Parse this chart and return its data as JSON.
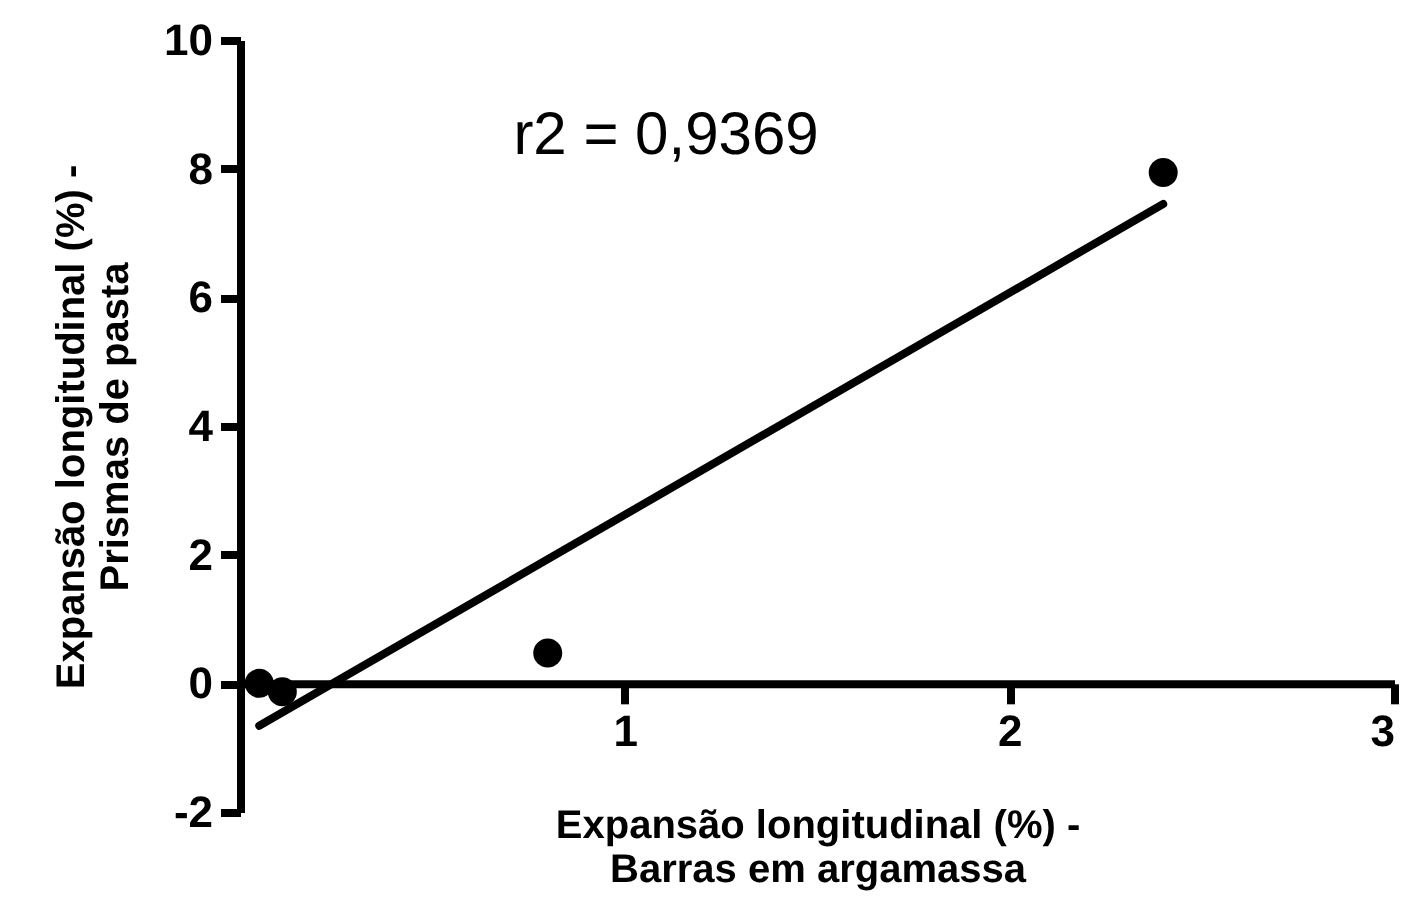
{
  "chart_data": {
    "type": "scatter",
    "xlabel": "Expansão longitudinal (%) -\nBarras em argamassa",
    "ylabel": "Expansão longitudinal (%) -\nPrismas de pasta",
    "annotations": [
      "r2 = 0,9369"
    ],
    "xlim": [
      0,
      3
    ],
    "xticks": [
      1,
      2,
      3
    ],
    "ylim": [
      -2,
      10
    ],
    "yticks": [
      -2,
      0,
      2,
      4,
      6,
      8,
      10
    ],
    "series": [
      {
        "marker": "circle",
        "color": "#000000",
        "x": [
          0.05,
          0.11,
          0.8,
          2.4
        ],
        "values": [
          0,
          -0.13,
          0.47,
          7.94
        ]
      },
      {
        "type": "line",
        "marker": "none",
        "color": "#000000",
        "line_style": "solid",
        "x": [
          0.05,
          2.4
        ],
        "values": [
          -0.66,
          7.45
        ]
      }
    ]
  }
}
